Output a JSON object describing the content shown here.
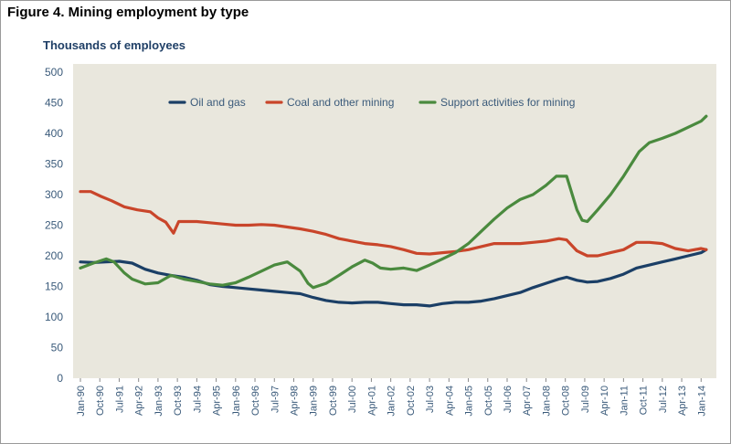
{
  "figure_title": "Figure 4. Mining employment by type",
  "chart_data": {
    "type": "line",
    "title": "Figure 4. Mining employment by type",
    "ylabel": "Thousands of employees",
    "xlabel": "",
    "ylim": [
      0,
      500
    ],
    "yticks": [
      0,
      50,
      100,
      150,
      200,
      250,
      300,
      350,
      400,
      450,
      500
    ],
    "x_start_year": 1990,
    "x_start_month": 1,
    "x_end_year": 2014,
    "x_end_month": 3,
    "xtick_labels": [
      "Jan-90",
      "Oct-90",
      "Jul-91",
      "Apr-92",
      "Jan-93",
      "Oct-93",
      "Jul-94",
      "Apr-95",
      "Jan-96",
      "Oct-96",
      "Jul-97",
      "Apr-98",
      "Jan-99",
      "Oct-99",
      "Jul-00",
      "Apr-01",
      "Jan-02",
      "Oct-02",
      "Jul-03",
      "Apr-04",
      "Jan-05",
      "Oct-05",
      "Jul-06",
      "Apr-07",
      "Jan-08",
      "Oct-08",
      "Jul-09",
      "Apr-10",
      "Jan-11",
      "Oct-11",
      "Jul-12",
      "Apr-13",
      "Jan-14"
    ],
    "legend_position": "top",
    "series": [
      {
        "name": "Oil and gas",
        "color": "#1b3f66",
        "x": [
          1990.0,
          1990.5,
          1991.0,
          1991.5,
          1992.0,
          1992.5,
          1993.0,
          1993.5,
          1994.0,
          1994.5,
          1995.0,
          1995.5,
          1996.0,
          1996.5,
          1997.0,
          1997.5,
          1998.0,
          1998.5,
          1999.0,
          1999.5,
          2000.0,
          2000.5,
          2001.0,
          2001.5,
          2002.0,
          2002.5,
          2003.0,
          2003.5,
          2004.0,
          2004.5,
          2005.0,
          2005.5,
          2006.0,
          2006.5,
          2007.0,
          2007.5,
          2008.0,
          2008.5,
          2008.8,
          2009.2,
          2009.6,
          2010.0,
          2010.5,
          2011.0,
          2011.5,
          2012.0,
          2012.5,
          2013.0,
          2013.5,
          2014.0,
          2014.2
        ],
        "y": [
          190,
          189,
          190,
          191,
          188,
          178,
          172,
          168,
          165,
          160,
          153,
          150,
          148,
          146,
          144,
          142,
          140,
          138,
          132,
          127,
          124,
          123,
          124,
          124,
          122,
          120,
          120,
          118,
          122,
          124,
          124,
          126,
          130,
          135,
          140,
          148,
          155,
          162,
          165,
          160,
          157,
          158,
          163,
          170,
          180,
          185,
          190,
          195,
          200,
          205,
          210
        ]
      },
      {
        "name": "Coal and other mining",
        "color": "#c9452a",
        "x": [
          1990.0,
          1990.4,
          1990.8,
          1991.2,
          1991.7,
          1992.2,
          1992.7,
          1993.0,
          1993.3,
          1993.6,
          1993.8,
          1994.5,
          1995.0,
          1995.5,
          1996.0,
          1996.5,
          1997.0,
          1997.5,
          1998.0,
          1998.5,
          1999.0,
          1999.5,
          2000.0,
          2000.5,
          2001.0,
          2001.5,
          2002.0,
          2002.5,
          2003.0,
          2003.5,
          2004.0,
          2004.5,
          2005.0,
          2005.5,
          2006.0,
          2006.5,
          2007.0,
          2007.5,
          2008.0,
          2008.5,
          2008.8,
          2009.2,
          2009.6,
          2010.0,
          2010.5,
          2011.0,
          2011.5,
          2012.0,
          2012.5,
          2013.0,
          2013.5,
          2014.0,
          2014.2
        ],
        "y": [
          305,
          305,
          297,
          290,
          280,
          275,
          272,
          262,
          255,
          237,
          256,
          256,
          254,
          252,
          250,
          250,
          251,
          250,
          247,
          244,
          240,
          235,
          228,
          224,
          220,
          218,
          215,
          210,
          204,
          203,
          205,
          207,
          210,
          215,
          220,
          220,
          220,
          222,
          224,
          228,
          226,
          208,
          200,
          200,
          205,
          210,
          222,
          222,
          220,
          212,
          208,
          212,
          210
        ]
      },
      {
        "name": "Support activities for mining",
        "color": "#4a8a3e",
        "x": [
          1990.0,
          1990.5,
          1991.0,
          1991.3,
          1991.7,
          1992.0,
          1992.5,
          1993.0,
          1993.5,
          1994.0,
          1994.5,
          1995.0,
          1995.5,
          1996.0,
          1996.5,
          1997.0,
          1997.5,
          1998.0,
          1998.5,
          1998.8,
          1999.0,
          1999.5,
          2000.0,
          2000.5,
          2001.0,
          2001.3,
          2001.6,
          2002.0,
          2002.5,
          2003.0,
          2003.5,
          2004.0,
          2004.5,
          2005.0,
          2005.5,
          2006.0,
          2006.5,
          2007.0,
          2007.5,
          2008.0,
          2008.4,
          2008.8,
          2009.2,
          2009.4,
          2009.6,
          2010.0,
          2010.5,
          2011.0,
          2011.3,
          2011.6,
          2012.0,
          2012.5,
          2013.0,
          2013.5,
          2014.0,
          2014.2
        ],
        "y": [
          180,
          188,
          195,
          190,
          172,
          162,
          154,
          156,
          168,
          162,
          158,
          154,
          152,
          156,
          165,
          175,
          185,
          190,
          175,
          155,
          148,
          155,
          168,
          182,
          193,
          188,
          180,
          178,
          180,
          176,
          185,
          195,
          205,
          220,
          240,
          260,
          278,
          292,
          300,
          315,
          330,
          330,
          275,
          258,
          256,
          275,
          300,
          330,
          350,
          370,
          385,
          392,
          400,
          410,
          420,
          428
        ]
      }
    ]
  }
}
